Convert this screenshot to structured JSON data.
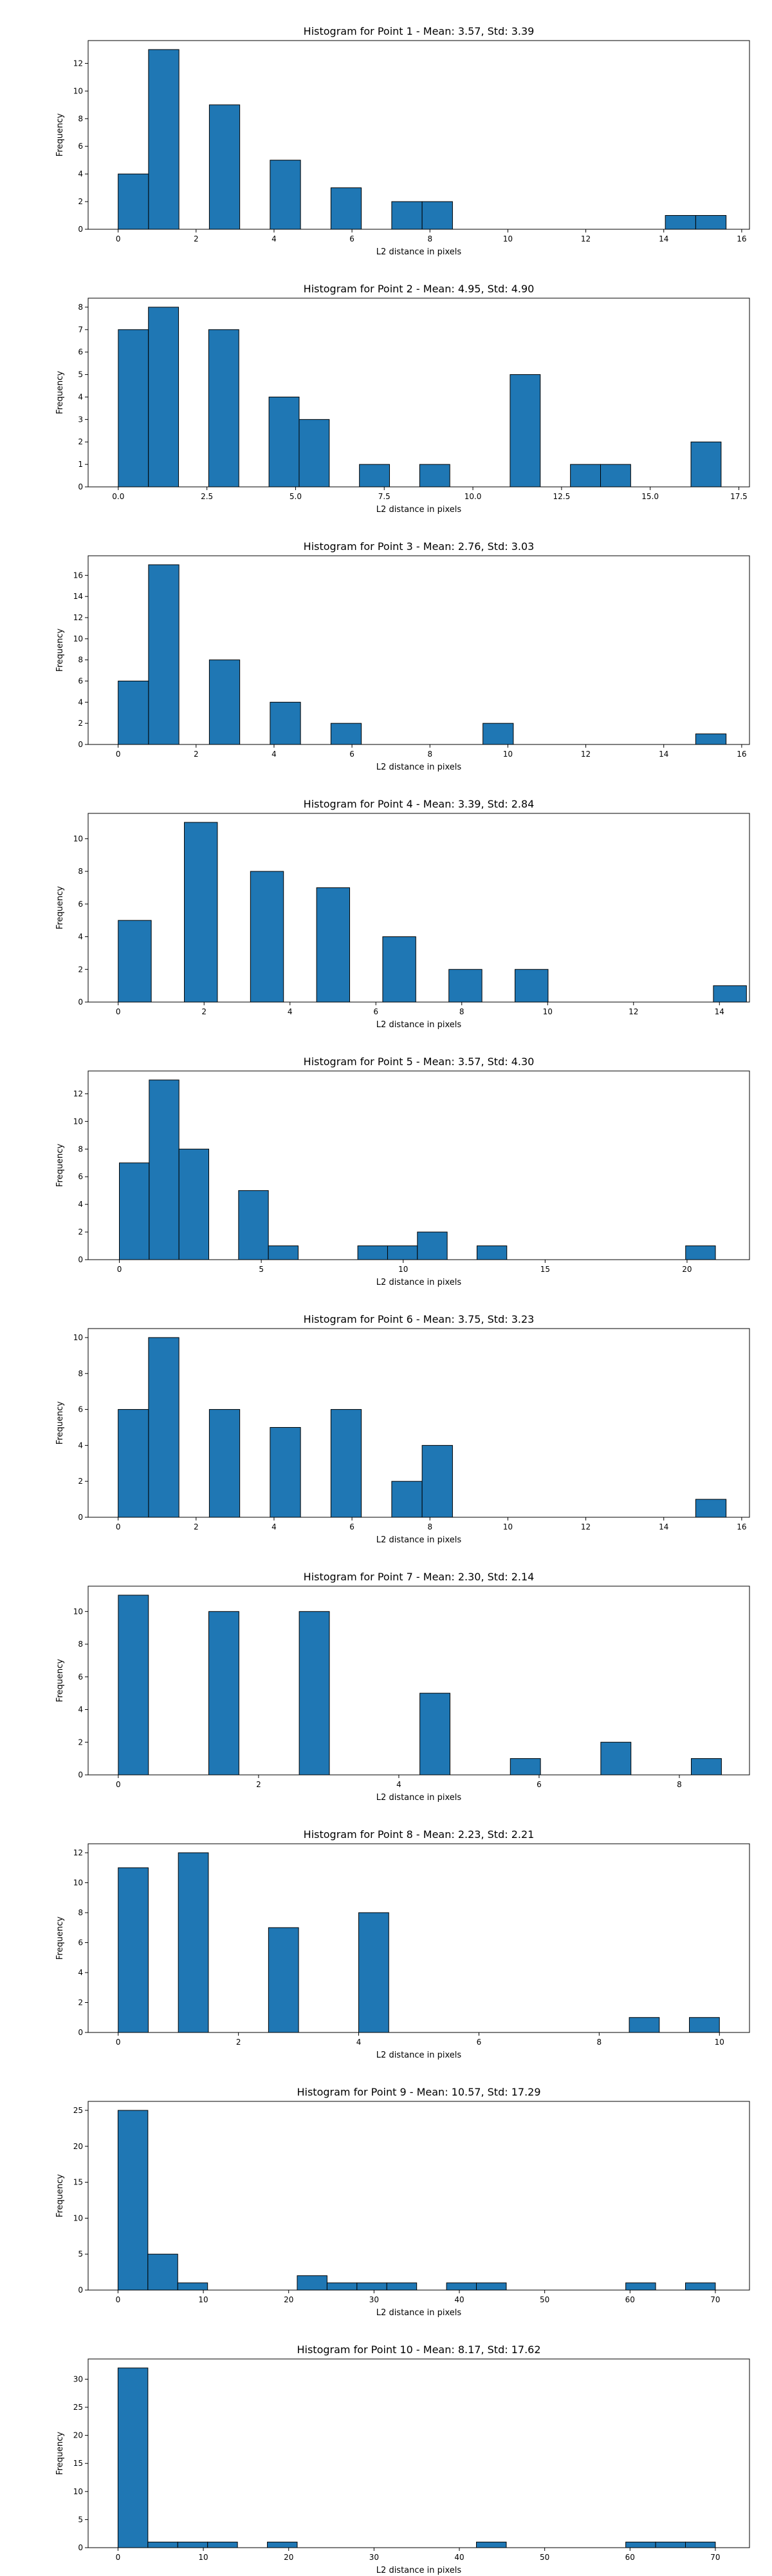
{
  "colors": {
    "bar": "#1f77b4",
    "edge": "#000000",
    "background": "#ffffff"
  },
  "chart_data": [
    {
      "type": "bar",
      "title": "Histogram for Point 1 - Mean: 3.57, Std: 3.39",
      "xlabel": "L2 distance in pixels",
      "ylabel": "Frequency",
      "xlim": [
        -0.77,
        16.2
      ],
      "ylim": [
        0,
        13.65
      ],
      "xticks": [
        0,
        2,
        4,
        6,
        8,
        10,
        12,
        14,
        16
      ],
      "yticks": [
        0,
        2,
        4,
        6,
        8,
        10,
        12
      ],
      "bin_width": 0.78,
      "bins": [
        [
          0.0,
          4
        ],
        [
          0.78,
          13
        ],
        [
          2.34,
          9
        ],
        [
          3.9,
          5
        ],
        [
          5.46,
          3
        ],
        [
          7.02,
          2
        ],
        [
          7.8,
          2
        ],
        [
          14.04,
          1
        ],
        [
          14.82,
          1
        ]
      ]
    },
    {
      "type": "bar",
      "title": "Histogram for Point 2 - Mean: 4.95, Std: 4.90",
      "xlabel": "L2 distance in pixels",
      "ylabel": "Frequency",
      "xlim": [
        -0.85,
        17.8
      ],
      "ylim": [
        0,
        8.4
      ],
      "xticks": [
        0.0,
        2.5,
        5.0,
        7.5,
        10.0,
        12.5,
        15.0,
        17.5
      ],
      "xtick_labels": [
        "0.0",
        "2.5",
        "5.0",
        "7.5",
        "10.0",
        "12.5",
        "15.0",
        "17.5"
      ],
      "yticks": [
        0,
        1,
        2,
        3,
        4,
        5,
        6,
        7,
        8
      ],
      "bin_width": 0.85,
      "bins": [
        [
          0.0,
          7
        ],
        [
          0.85,
          8
        ],
        [
          2.55,
          7
        ],
        [
          4.25,
          4
        ],
        [
          5.1,
          3
        ],
        [
          6.8,
          1
        ],
        [
          8.5,
          1
        ],
        [
          11.05,
          5
        ],
        [
          12.75,
          1
        ],
        [
          13.6,
          1
        ],
        [
          16.15,
          2
        ]
      ]
    },
    {
      "type": "bar",
      "title": "Histogram for Point 3 - Mean: 2.76, Std: 3.03",
      "xlabel": "L2 distance in pixels",
      "ylabel": "Frequency",
      "xlim": [
        -0.77,
        16.2
      ],
      "ylim": [
        0,
        17.85
      ],
      "xticks": [
        0,
        2,
        4,
        6,
        8,
        10,
        12,
        14,
        16
      ],
      "yticks": [
        0,
        2,
        4,
        6,
        8,
        10,
        12,
        14,
        16
      ],
      "bin_width": 0.78,
      "bins": [
        [
          0.0,
          6
        ],
        [
          0.78,
          17
        ],
        [
          2.34,
          8
        ],
        [
          3.9,
          4
        ],
        [
          5.46,
          2
        ],
        [
          9.36,
          2
        ],
        [
          14.82,
          1
        ]
      ]
    },
    {
      "type": "bar",
      "title": "Histogram for Point 4 - Mean: 3.39, Std: 2.84",
      "xlabel": "L2 distance in pixels",
      "ylabel": "Frequency",
      "xlim": [
        -0.7,
        14.7
      ],
      "ylim": [
        0,
        11.55
      ],
      "xticks": [
        0,
        2,
        4,
        6,
        8,
        10,
        12,
        14
      ],
      "yticks": [
        0,
        2,
        4,
        6,
        8,
        10
      ],
      "bin_width": 0.77,
      "bins": [
        [
          0.0,
          5
        ],
        [
          1.54,
          11
        ],
        [
          3.08,
          8
        ],
        [
          4.62,
          7
        ],
        [
          6.16,
          4
        ],
        [
          7.7,
          2
        ],
        [
          9.24,
          2
        ],
        [
          13.86,
          1
        ]
      ]
    },
    {
      "type": "bar",
      "title": "Histogram for Point 5 - Mean: 3.57, Std: 4.30",
      "xlabel": "L2 distance in pixels",
      "ylabel": "Frequency",
      "xlim": [
        -1.1,
        22.2
      ],
      "ylim": [
        0,
        13.65
      ],
      "xticks": [
        0,
        5,
        10,
        15,
        20
      ],
      "yticks": [
        0,
        2,
        4,
        6,
        8,
        10,
        12
      ],
      "bin_width": 1.05,
      "bins": [
        [
          0.0,
          7
        ],
        [
          1.05,
          13
        ],
        [
          2.1,
          8
        ],
        [
          4.2,
          5
        ],
        [
          5.25,
          1
        ],
        [
          8.4,
          1
        ],
        [
          9.45,
          1
        ],
        [
          10.5,
          2
        ],
        [
          12.6,
          1
        ],
        [
          19.95,
          1
        ]
      ]
    },
    {
      "type": "bar",
      "title": "Histogram for Point 6 - Mean: 3.75, Std: 3.23",
      "xlabel": "L2 distance in pixels",
      "ylabel": "Frequency",
      "xlim": [
        -0.77,
        16.2
      ],
      "ylim": [
        0,
        10.5
      ],
      "xticks": [
        0,
        2,
        4,
        6,
        8,
        10,
        12,
        14,
        16
      ],
      "yticks": [
        0,
        2,
        4,
        6,
        8,
        10
      ],
      "bin_width": 0.78,
      "bins": [
        [
          0.0,
          6
        ],
        [
          0.78,
          10
        ],
        [
          2.34,
          6
        ],
        [
          3.9,
          5
        ],
        [
          5.46,
          6
        ],
        [
          7.02,
          2
        ],
        [
          7.8,
          4
        ],
        [
          14.82,
          1
        ]
      ]
    },
    {
      "type": "bar",
      "title": "Histogram for Point 7 - Mean: 2.30, Std: 2.14",
      "xlabel": "L2 distance in pixels",
      "ylabel": "Frequency",
      "xlim": [
        -0.43,
        9.0
      ],
      "ylim": [
        0,
        11.55
      ],
      "xticks": [
        0,
        2,
        4,
        6,
        8
      ],
      "yticks": [
        0,
        2,
        4,
        6,
        8,
        10
      ],
      "bin_width": 0.43,
      "bins": [
        [
          0.0,
          11
        ],
        [
          1.29,
          10
        ],
        [
          2.58,
          10
        ],
        [
          4.3,
          5
        ],
        [
          5.59,
          1
        ],
        [
          6.88,
          2
        ],
        [
          8.17,
          1
        ]
      ]
    },
    {
      "type": "bar",
      "title": "Histogram for Point 8 - Mean: 2.23, Std: 2.21",
      "xlabel": "L2 distance in pixels",
      "ylabel": "Frequency",
      "xlim": [
        -0.5,
        10.5
      ],
      "ylim": [
        0,
        12.6
      ],
      "xticks": [
        0,
        2,
        4,
        6,
        8,
        10
      ],
      "yticks": [
        0,
        2,
        4,
        6,
        8,
        10,
        12
      ],
      "bin_width": 0.5,
      "bins": [
        [
          0.0,
          11
        ],
        [
          1.0,
          12
        ],
        [
          2.5,
          7
        ],
        [
          4.0,
          8
        ],
        [
          8.5,
          1
        ],
        [
          9.5,
          1
        ]
      ]
    },
    {
      "type": "bar",
      "title": "Histogram for Point 9 - Mean: 10.57, Std: 17.29",
      "xlabel": "L2 distance in pixels",
      "ylabel": "Frequency",
      "xlim": [
        -3.5,
        74.0
      ],
      "ylim": [
        0,
        26.25
      ],
      "xticks": [
        0,
        10,
        20,
        30,
        40,
        50,
        60,
        70
      ],
      "yticks": [
        0,
        5,
        10,
        15,
        20,
        25
      ],
      "bin_width": 3.5,
      "bins": [
        [
          0.0,
          25
        ],
        [
          3.5,
          5
        ],
        [
          7.0,
          1
        ],
        [
          21.0,
          2
        ],
        [
          24.5,
          1
        ],
        [
          28.0,
          1
        ],
        [
          31.5,
          1
        ],
        [
          38.5,
          1
        ],
        [
          42.0,
          1
        ],
        [
          59.5,
          1
        ],
        [
          66.5,
          1
        ]
      ]
    },
    {
      "type": "bar",
      "title": "Histogram for Point 10 - Mean: 8.17, Std: 17.62",
      "xlabel": "L2 distance in pixels",
      "ylabel": "Frequency",
      "xlim": [
        -3.5,
        74.0
      ],
      "ylim": [
        0,
        33.6
      ],
      "xticks": [
        0,
        10,
        20,
        30,
        40,
        50,
        60,
        70
      ],
      "yticks": [
        0,
        5,
        10,
        15,
        20,
        25,
        30
      ],
      "bin_width": 3.5,
      "bins": [
        [
          0.0,
          32
        ],
        [
          3.5,
          1
        ],
        [
          7.0,
          1
        ],
        [
          10.5,
          1
        ],
        [
          17.5,
          1
        ],
        [
          42.0,
          1
        ],
        [
          59.5,
          1
        ],
        [
          63.0,
          1
        ],
        [
          66.5,
          1
        ]
      ]
    }
  ]
}
